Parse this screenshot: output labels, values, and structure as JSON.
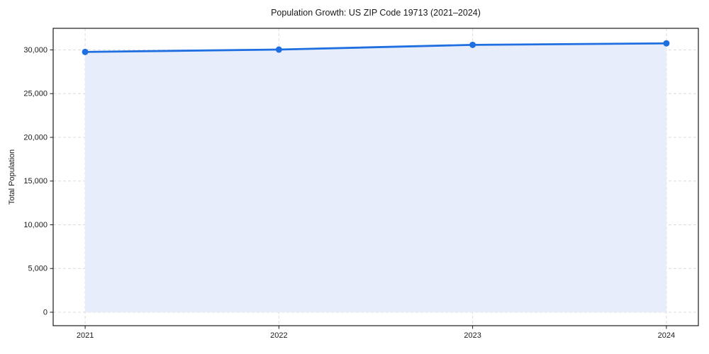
{
  "chart_data": {
    "type": "area",
    "title": "Population Growth: US ZIP Code 19713 (2021–2024)",
    "xlabel": "",
    "ylabel": "Total Population",
    "x": [
      2021,
      2022,
      2023,
      2024
    ],
    "series": [
      {
        "name": "Total Population",
        "values": [
          29770,
          30040,
          30580,
          30750
        ]
      }
    ],
    "xticks": [
      {
        "value": 2021,
        "label": "2021"
      },
      {
        "value": 2022,
        "label": "2022"
      },
      {
        "value": 2023,
        "label": "2023"
      },
      {
        "value": 2024,
        "label": "2024"
      }
    ],
    "yticks": [
      {
        "value": 0,
        "label": "0"
      },
      {
        "value": 5000,
        "label": "5,000"
      },
      {
        "value": 10000,
        "label": "10,000"
      },
      {
        "value": 15000,
        "label": "15,000"
      },
      {
        "value": 20000,
        "label": "20,000"
      },
      {
        "value": 25000,
        "label": "25,000"
      },
      {
        "value": 30000,
        "label": "30,000"
      }
    ],
    "xlim": [
      2020.835,
      2024.165
    ],
    "ylim": [
      -1540,
      32470
    ],
    "baseline": 0,
    "grid": true,
    "legend": false,
    "colors": {
      "line": "#1f6fe0",
      "marker": "#1f6fe0",
      "fill": "#e7edfb",
      "grid": "#dcdcdc",
      "border": "#1a1a1a",
      "tick": "#1a1a1a",
      "text": "#1a1a1a",
      "background": "#ffffff"
    }
  }
}
